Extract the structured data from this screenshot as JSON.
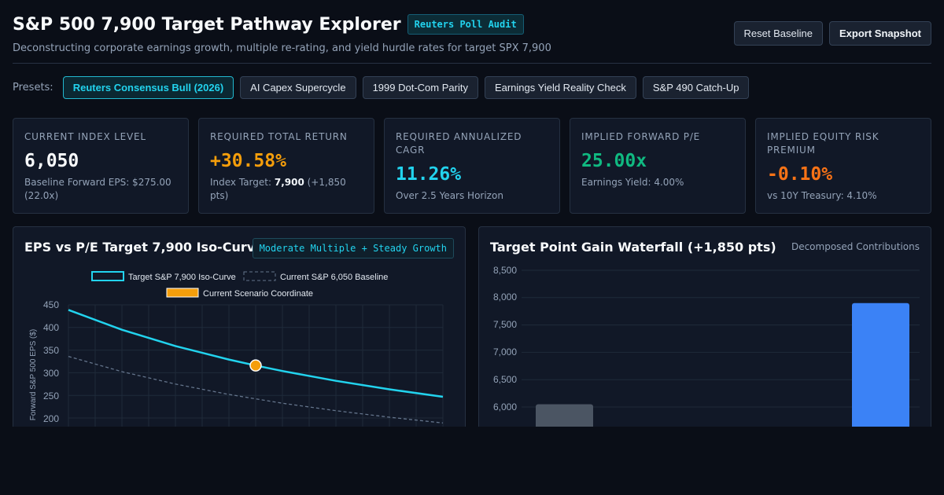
{
  "header": {
    "title": "S&P 500 7,900 Target Pathway Explorer",
    "badge": "Reuters Poll Audit",
    "subtitle": "Deconstructing corporate earnings growth, multiple re-rating, and yield hurdle rates for target SPX 7,900",
    "buttons": {
      "reset": "Reset Baseline",
      "export": "Export Snapshot"
    }
  },
  "presets": {
    "label": "Presets:",
    "items": [
      {
        "label": "Reuters Consensus Bull (2026)",
        "active": true
      },
      {
        "label": "AI Capex Supercycle",
        "active": false
      },
      {
        "label": "1999 Dot-Com Parity",
        "active": false
      },
      {
        "label": "Earnings Yield Reality Check",
        "active": false
      },
      {
        "label": "S&P 490 Catch-Up",
        "active": false
      }
    ]
  },
  "cards": [
    {
      "label": "Current Index Level",
      "value": "6,050",
      "note": "Baseline Forward EPS: $275.00 (22.0x)"
    },
    {
      "label": "Required Total Return",
      "value": "+30.58%",
      "note_prefix": "Index Target: ",
      "note_bold": "7,900",
      "note_suffix": " (+1,850 pts)"
    },
    {
      "label": "Required Annualized CAGR",
      "value": "11.26%",
      "note": "Over 2.5 Years Horizon"
    },
    {
      "label": "Implied Forward P/E",
      "value": "25.00x",
      "note": "Earnings Yield: 4.00%"
    },
    {
      "label": "Implied Equity Risk Premium",
      "value": "-0.10%",
      "note": "vs 10Y Treasury: 4.10%"
    }
  ],
  "colors": {
    "accent_cyan": "#22d3ee",
    "orange": "#f59e0b",
    "green": "#10b981",
    "red_orange": "#f97316",
    "bar_blue": "#3b82f6",
    "bar_gray": "#4b5563"
  },
  "iso_panel": {
    "title": "EPS vs P/E Target 7,900 Iso-Curve",
    "tag": "Moderate Multiple + Steady Growth",
    "legend": [
      "Target S&P 7,900 Iso-Curve",
      "Current S&P 6,050 Baseline",
      "Current Scenario Coordinate"
    ],
    "ylabel": "Forward S&P 500 EPS ($)",
    "y_ticks": [
      "450",
      "400",
      "350",
      "300",
      "250",
      "200"
    ]
  },
  "waterfall_panel": {
    "title": "Target Point Gain Waterfall (+1,850 pts)",
    "aside": "Decomposed Contributions",
    "y_ticks": [
      "8,500",
      "8,000",
      "7,500",
      "7,000",
      "6,500",
      "6,000"
    ]
  },
  "chart_data": [
    {
      "type": "line",
      "title": "EPS vs P/E Target 7,900 Iso-Curve",
      "ylabel": "Forward S&P 500 EPS ($)",
      "ylim": [
        200,
        450
      ],
      "xlim": [
        18,
        32
      ],
      "grid": true,
      "legend_position": "top",
      "series": [
        {
          "name": "Target S&P 7,900 Iso-Curve",
          "style": "solid",
          "color": "#22d3ee",
          "x": [
            18,
            20,
            22,
            24,
            25,
            26,
            28,
            30,
            32
          ],
          "y": [
            438.9,
            395.0,
            359.1,
            329.2,
            316.0,
            303.8,
            282.1,
            263.3,
            246.9
          ]
        },
        {
          "name": "Current S&P 6,050 Baseline",
          "style": "dashed",
          "color": "#64748b",
          "x": [
            18,
            20,
            22,
            24,
            26,
            28,
            30,
            32
          ],
          "y": [
            336.1,
            302.5,
            275.0,
            252.1,
            232.7,
            216.1,
            201.7,
            189.1
          ]
        },
        {
          "name": "Current Scenario Coordinate",
          "style": "point",
          "color": "#f59e0b",
          "x": [
            25
          ],
          "y": [
            316.0
          ]
        }
      ]
    },
    {
      "type": "bar",
      "title": "Target Point Gain Waterfall (+1,850 pts)",
      "ylim": [
        5600,
        8500
      ],
      "y_ticks": [
        6000,
        6500,
        7000,
        7500,
        8000,
        8500
      ],
      "grid": true,
      "series": [
        {
          "values": [
            6050,
            7900
          ],
          "colors": [
            "#4b5563",
            "#3b82f6"
          ]
        }
      ]
    }
  ]
}
